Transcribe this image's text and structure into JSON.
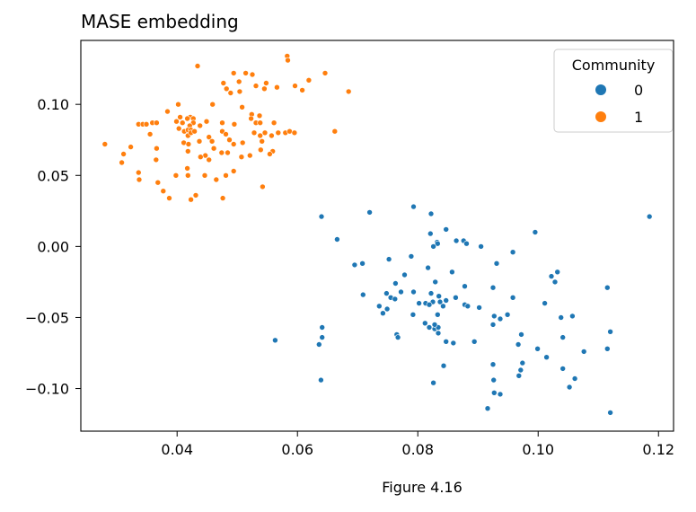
{
  "caption": "Figure 4.16",
  "chart_data": {
    "type": "scatter",
    "title": "MASE embedding",
    "xlabel": "",
    "ylabel": "",
    "xlim": [
      0.024,
      0.1225
    ],
    "ylim": [
      -0.13,
      0.145
    ],
    "xticks": [
      0.04,
      0.06,
      0.08,
      0.1,
      0.12
    ],
    "xtick_labels": [
      "0.04",
      "0.06",
      "0.08",
      "0.10",
      "0.12"
    ],
    "yticks": [
      -0.1,
      -0.05,
      0.0,
      0.05,
      0.1
    ],
    "ytick_labels": [
      "−0.10",
      "−0.05",
      "0.00",
      "0.05",
      "0.10"
    ],
    "grid": false,
    "legend": {
      "title": "Community",
      "position": "top-right",
      "entries": [
        {
          "label": "0",
          "color": "#1f77b4"
        },
        {
          "label": "1",
          "color": "#ff7f0e"
        }
      ]
    },
    "series": [
      {
        "name": "0",
        "color": "#1f77b4",
        "points": [
          [
            0.064,
            0.021
          ],
          [
            0.072,
            0.024
          ],
          [
            0.0793,
            0.028
          ],
          [
            0.0822,
            0.023
          ],
          [
            0.1185,
            0.021
          ],
          [
            0.0666,
            0.005
          ],
          [
            0.0847,
            0.012
          ],
          [
            0.0995,
            0.01
          ],
          [
            0.0821,
            0.009
          ],
          [
            0.0832,
            0.003
          ],
          [
            0.0833,
            0.002
          ],
          [
            0.0864,
            0.004
          ],
          [
            0.0826,
            0.0
          ],
          [
            0.0876,
            0.004
          ],
          [
            0.0881,
            0.002
          ],
          [
            0.0905,
            0.0
          ],
          [
            0.0958,
            -0.004
          ],
          [
            0.0931,
            -0.012
          ],
          [
            0.0695,
            -0.013
          ],
          [
            0.0708,
            -0.012
          ],
          [
            0.0752,
            -0.009
          ],
          [
            0.0789,
            -0.007
          ],
          [
            0.0778,
            -0.02
          ],
          [
            0.0817,
            -0.015
          ],
          [
            0.0857,
            -0.018
          ],
          [
            0.1022,
            -0.021
          ],
          [
            0.1032,
            -0.018
          ],
          [
            0.0763,
            -0.026
          ],
          [
            0.0829,
            -0.025
          ],
          [
            0.0878,
            -0.028
          ],
          [
            0.0925,
            -0.029
          ],
          [
            0.1028,
            -0.025
          ],
          [
            0.1115,
            -0.029
          ],
          [
            0.0709,
            -0.034
          ],
          [
            0.0748,
            -0.033
          ],
          [
            0.0772,
            -0.032
          ],
          [
            0.0793,
            -0.032
          ],
          [
            0.0822,
            -0.033
          ],
          [
            0.0755,
            -0.036
          ],
          [
            0.0835,
            -0.035
          ],
          [
            0.0825,
            -0.039
          ],
          [
            0.0837,
            -0.039
          ],
          [
            0.0762,
            -0.037
          ],
          [
            0.0847,
            -0.038
          ],
          [
            0.0863,
            -0.036
          ],
          [
            0.0958,
            -0.036
          ],
          [
            0.1011,
            -0.04
          ],
          [
            0.0736,
            -0.042
          ],
          [
            0.0802,
            -0.04
          ],
          [
            0.0842,
            -0.042
          ],
          [
            0.0813,
            -0.04
          ],
          [
            0.0819,
            -0.041
          ],
          [
            0.0878,
            -0.041
          ],
          [
            0.0883,
            -0.042
          ],
          [
            0.0902,
            -0.043
          ],
          [
            0.0742,
            -0.047
          ],
          [
            0.0749,
            -0.044
          ],
          [
            0.0792,
            -0.048
          ],
          [
            0.0833,
            -0.048
          ],
          [
            0.0927,
            -0.049
          ],
          [
            0.0937,
            -0.051
          ],
          [
            0.0949,
            -0.048
          ],
          [
            0.1038,
            -0.05
          ],
          [
            0.1057,
            -0.049
          ],
          [
            0.0812,
            -0.054
          ],
          [
            0.0819,
            -0.057
          ],
          [
            0.0828,
            -0.058
          ],
          [
            0.0834,
            -0.057
          ],
          [
            0.0828,
            -0.055
          ],
          [
            0.0925,
            -0.055
          ],
          [
            0.0834,
            -0.061
          ],
          [
            0.0847,
            -0.067
          ],
          [
            0.0859,
            -0.068
          ],
          [
            0.0894,
            -0.067
          ],
          [
            0.0972,
            -0.062
          ],
          [
            0.0967,
            -0.069
          ],
          [
            0.0999,
            -0.072
          ],
          [
            0.1041,
            -0.064
          ],
          [
            0.1076,
            -0.074
          ],
          [
            0.1115,
            -0.072
          ],
          [
            0.112,
            -0.06
          ],
          [
            0.0765,
            -0.062
          ],
          [
            0.0767,
            -0.064
          ],
          [
            0.0563,
            -0.066
          ],
          [
            0.0641,
            -0.064
          ],
          [
            0.0641,
            -0.057
          ],
          [
            0.0636,
            -0.069
          ],
          [
            0.0843,
            -0.084
          ],
          [
            0.0925,
            -0.083
          ],
          [
            0.0974,
            -0.082
          ],
          [
            0.0971,
            -0.087
          ],
          [
            0.0968,
            -0.091
          ],
          [
            0.1014,
            -0.078
          ],
          [
            0.1041,
            -0.086
          ],
          [
            0.1061,
            -0.093
          ],
          [
            0.0639,
            -0.094
          ],
          [
            0.0826,
            -0.096
          ],
          [
            0.0926,
            -0.094
          ],
          [
            0.0927,
            -0.103
          ],
          [
            0.0937,
            -0.104
          ],
          [
            0.1052,
            -0.099
          ],
          [
            0.0916,
            -0.114
          ],
          [
            0.112,
            -0.117
          ]
        ]
      },
      {
        "name": "1",
        "color": "#ff7f0e",
        "points": [
          [
            0.0434,
            0.127
          ],
          [
            0.0583,
            0.134
          ],
          [
            0.0584,
            0.131
          ],
          [
            0.0494,
            0.122
          ],
          [
            0.0514,
            0.122
          ],
          [
            0.0646,
            0.122
          ],
          [
            0.0525,
            0.121
          ],
          [
            0.0619,
            0.117
          ],
          [
            0.0477,
            0.115
          ],
          [
            0.0503,
            0.116
          ],
          [
            0.0531,
            0.113
          ],
          [
            0.0548,
            0.115
          ],
          [
            0.0566,
            0.112
          ],
          [
            0.0596,
            0.113
          ],
          [
            0.0482,
            0.111
          ],
          [
            0.0489,
            0.108
          ],
          [
            0.0504,
            0.109
          ],
          [
            0.0545,
            0.111
          ],
          [
            0.0608,
            0.11
          ],
          [
            0.0685,
            0.109
          ],
          [
            0.0402,
            0.1
          ],
          [
            0.0459,
            0.1
          ],
          [
            0.0508,
            0.098
          ],
          [
            0.0384,
            0.095
          ],
          [
            0.0405,
            0.091
          ],
          [
            0.0399,
            0.088
          ],
          [
            0.0422,
            0.091
          ],
          [
            0.0417,
            0.09
          ],
          [
            0.0427,
            0.09
          ],
          [
            0.0427,
            0.087
          ],
          [
            0.0409,
            0.087
          ],
          [
            0.0421,
            0.085
          ],
          [
            0.0438,
            0.085
          ],
          [
            0.0449,
            0.088
          ],
          [
            0.0475,
            0.087
          ],
          [
            0.0495,
            0.086
          ],
          [
            0.0524,
            0.093
          ],
          [
            0.0523,
            0.09
          ],
          [
            0.0537,
            0.092
          ],
          [
            0.0531,
            0.087
          ],
          [
            0.0538,
            0.087
          ],
          [
            0.0561,
            0.087
          ],
          [
            0.0336,
            0.086
          ],
          [
            0.0343,
            0.086
          ],
          [
            0.0349,
            0.086
          ],
          [
            0.0359,
            0.087
          ],
          [
            0.0366,
            0.087
          ],
          [
            0.0355,
            0.079
          ],
          [
            0.0403,
            0.083
          ],
          [
            0.0412,
            0.081
          ],
          [
            0.0418,
            0.082
          ],
          [
            0.0418,
            0.078
          ],
          [
            0.0423,
            0.082
          ],
          [
            0.0423,
            0.08
          ],
          [
            0.0429,
            0.081
          ],
          [
            0.0475,
            0.081
          ],
          [
            0.0481,
            0.079
          ],
          [
            0.0528,
            0.08
          ],
          [
            0.0538,
            0.078
          ],
          [
            0.0546,
            0.08
          ],
          [
            0.0557,
            0.078
          ],
          [
            0.0568,
            0.08
          ],
          [
            0.058,
            0.08
          ],
          [
            0.0587,
            0.081
          ],
          [
            0.0595,
            0.08
          ],
          [
            0.0662,
            0.081
          ],
          [
            0.0453,
            0.077
          ],
          [
            0.0458,
            0.074
          ],
          [
            0.0437,
            0.074
          ],
          [
            0.0411,
            0.073
          ],
          [
            0.0419,
            0.072
          ],
          [
            0.0418,
            0.067
          ],
          [
            0.0366,
            0.069
          ],
          [
            0.028,
            0.072
          ],
          [
            0.0323,
            0.07
          ],
          [
            0.0487,
            0.075
          ],
          [
            0.0494,
            0.072
          ],
          [
            0.0509,
            0.073
          ],
          [
            0.0541,
            0.074
          ],
          [
            0.0461,
            0.069
          ],
          [
            0.0474,
            0.066
          ],
          [
            0.0484,
            0.066
          ],
          [
            0.0447,
            0.064
          ],
          [
            0.0439,
            0.063
          ],
          [
            0.0559,
            0.067
          ],
          [
            0.0554,
            0.065
          ],
          [
            0.0539,
            0.068
          ],
          [
            0.0507,
            0.063
          ],
          [
            0.0521,
            0.064
          ],
          [
            0.0311,
            0.065
          ],
          [
            0.0308,
            0.059
          ],
          [
            0.0365,
            0.061
          ],
          [
            0.0453,
            0.061
          ],
          [
            0.0417,
            0.055
          ],
          [
            0.0446,
            0.05
          ],
          [
            0.0336,
            0.052
          ],
          [
            0.0337,
            0.047
          ],
          [
            0.0398,
            0.05
          ],
          [
            0.0418,
            0.05
          ],
          [
            0.0481,
            0.05
          ],
          [
            0.0494,
            0.053
          ],
          [
            0.0465,
            0.047
          ],
          [
            0.0368,
            0.045
          ],
          [
            0.0377,
            0.039
          ],
          [
            0.0387,
            0.034
          ],
          [
            0.0423,
            0.033
          ],
          [
            0.0431,
            0.036
          ],
          [
            0.0476,
            0.034
          ],
          [
            0.0542,
            0.042
          ]
        ]
      }
    ]
  }
}
